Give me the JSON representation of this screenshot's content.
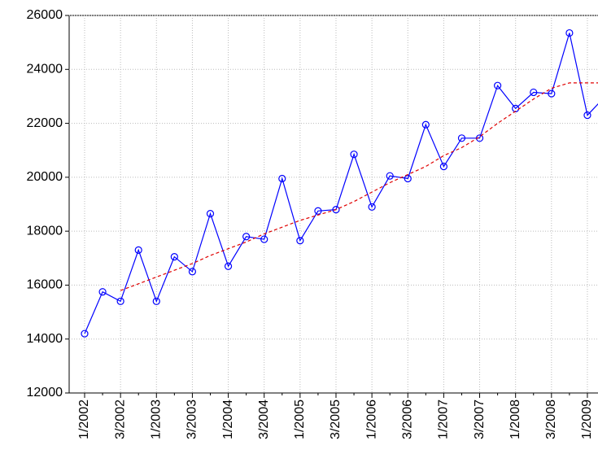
{
  "chart_data": {
    "type": "line",
    "categories": [
      "1/2002",
      null,
      "3/2002",
      null,
      "1/2003",
      null,
      "3/2003",
      null,
      "1/2004",
      null,
      "3/2004",
      null,
      "1/2005",
      null,
      "3/2005",
      null,
      "1/2006",
      null,
      "3/2006",
      null,
      "1/2007",
      null,
      "3/2007",
      null,
      "1/2008",
      null,
      "3/2008",
      null,
      "1/2009",
      null
    ],
    "series": [
      {
        "color": "#0000ff",
        "markers": true,
        "dashed": false,
        "values": [
          14200,
          15750,
          15400,
          17300,
          15400,
          17050,
          16500,
          18650,
          16700,
          17800,
          17700,
          19950,
          17650,
          18750,
          18800,
          20850,
          18900,
          20050,
          19950,
          21950,
          20400,
          21450,
          21450,
          23400,
          22550,
          23150,
          23100,
          25350,
          22300,
          23000
        ]
      },
      {
        "color": "#e00000",
        "markers": false,
        "dashed": true,
        "values": [
          null,
          null,
          15800,
          16050,
          16300,
          16550,
          16800,
          17100,
          17350,
          17600,
          17900,
          18150,
          18400,
          18600,
          18800,
          19100,
          19450,
          19800,
          20100,
          20400,
          20800,
          21100,
          21500,
          22000,
          22450,
          22900,
          23300,
          23500,
          23500,
          23500
        ]
      }
    ],
    "ylim": [
      12000,
      26000
    ],
    "yticks": [
      12000,
      14000,
      16000,
      18000,
      20000,
      22000,
      24000,
      26000
    ],
    "grid": true
  }
}
